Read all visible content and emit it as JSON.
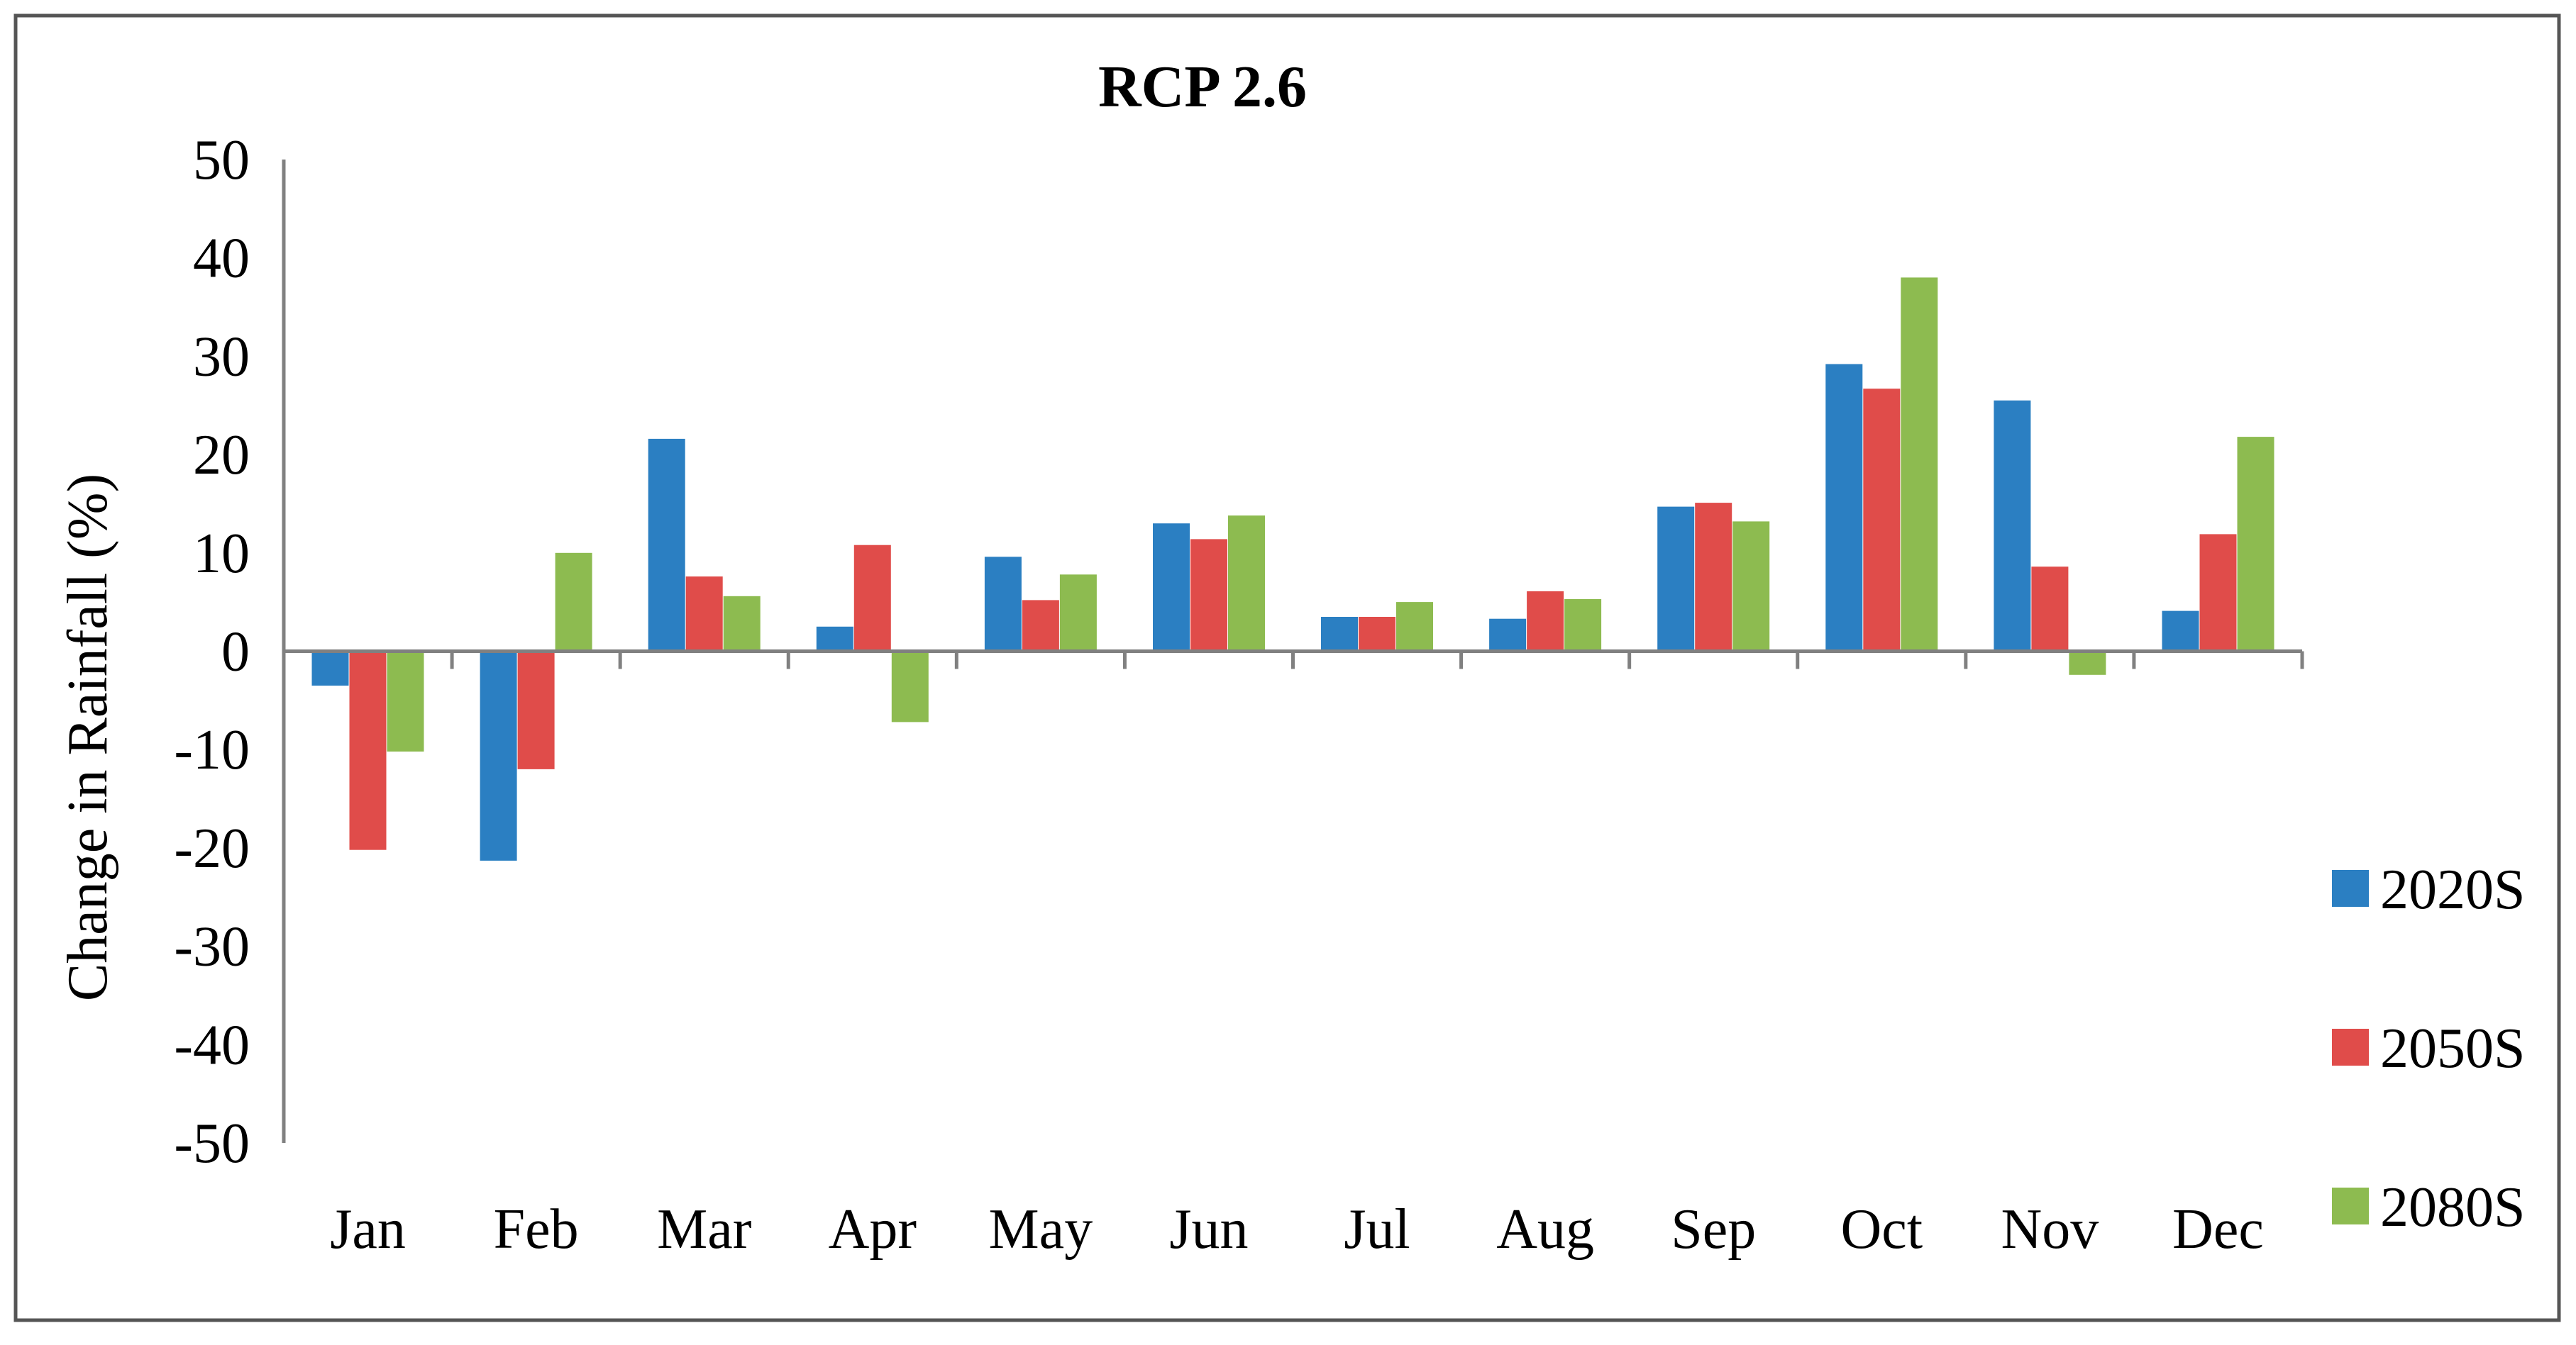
{
  "chart_data": {
    "type": "bar",
    "title": "RCP 2.6",
    "xlabel": "",
    "ylabel": "Change  in Rainfall (%)",
    "ylim": [
      -50,
      50
    ],
    "yticks": [
      "50",
      "40",
      "30",
      "20",
      "10",
      "0",
      "-10",
      "-20",
      "-30",
      "-40",
      "-50"
    ],
    "ytick_values": [
      50,
      40,
      30,
      20,
      10,
      0,
      -10,
      -20,
      -30,
      -40,
      -50
    ],
    "categories": [
      "Jan",
      "Feb",
      "Mar",
      "Apr",
      "May",
      "Jun",
      "Jul",
      "Aug",
      "Sep",
      "Oct",
      "Nov",
      "Dec"
    ],
    "series": [
      {
        "name": "2020S",
        "color": "#2b7fc2",
        "values": [
          -3.5,
          -21.3,
          21.6,
          2.5,
          9.6,
          13.0,
          3.5,
          3.3,
          14.7,
          29.2,
          25.5,
          4.1
        ]
      },
      {
        "name": "2050S",
        "color": "#e04c4a",
        "values": [
          -20.2,
          -12.0,
          7.6,
          10.8,
          5.2,
          11.4,
          3.5,
          6.1,
          15.1,
          26.7,
          8.6,
          11.9
        ]
      },
      {
        "name": "2080S",
        "color": "#8dbb50",
        "values": [
          -10.2,
          10.0,
          5.6,
          -7.2,
          7.8,
          13.8,
          5.0,
          5.3,
          13.2,
          38.0,
          -2.4,
          21.8
        ]
      }
    ],
    "grid": false,
    "legend_position": "right"
  }
}
